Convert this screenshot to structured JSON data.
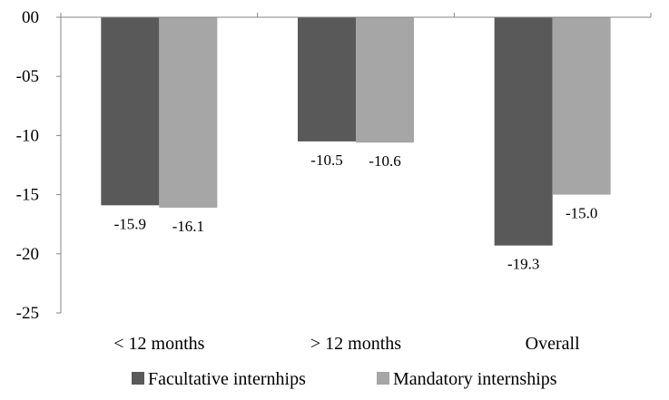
{
  "chart_data": {
    "type": "bar",
    "categories": [
      "< 12 months",
      "> 12 months",
      "Overall"
    ],
    "series": [
      {
        "name": "Facultative internhips",
        "values": [
          -15.9,
          -10.5,
          -19.3
        ],
        "labels": [
          "-15.9",
          "-10.5",
          "-19.3"
        ],
        "color": "#595959"
      },
      {
        "name": "Mandatory internships",
        "values": [
          -16.1,
          -10.6,
          -15.0
        ],
        "labels": [
          "-16.1",
          "-10.6",
          "-15.0"
        ],
        "color": "#a6a6a6"
      }
    ],
    "ylim": [
      -25,
      0
    ],
    "yticks": [
      0,
      -5,
      -10,
      -15,
      -20,
      -25
    ],
    "ytick_labels": [
      "00",
      "-05",
      "-10",
      "-15",
      "-20",
      "-25"
    ],
    "xlabel": "",
    "ylabel": "",
    "legend_position": "bottom",
    "grid": false
  }
}
